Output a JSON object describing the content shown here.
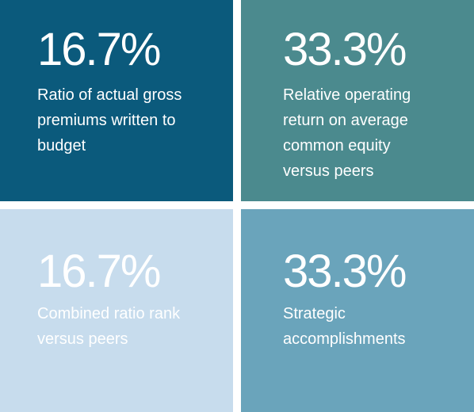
{
  "tiles": [
    {
      "value": "16.7%",
      "label": "Ratio of actual gross\npremiums written to\nbudget",
      "bg": "#0b5a7c",
      "fg": "#ffffff"
    },
    {
      "value": "33.3%",
      "label": "Relative operating\nreturn on average\ncommon equity\nversus peers",
      "bg": "#4b8a8e",
      "fg": "#ffffff"
    },
    {
      "value": "16.7%",
      "label": "Combined ratio rank\nversus peers",
      "bg": "#c7dced",
      "fg": "#ffffff"
    },
    {
      "value": "33.3%",
      "label": "Strategic\naccomplishments",
      "bg": "#6aa4bb",
      "fg": "#ffffff"
    }
  ]
}
